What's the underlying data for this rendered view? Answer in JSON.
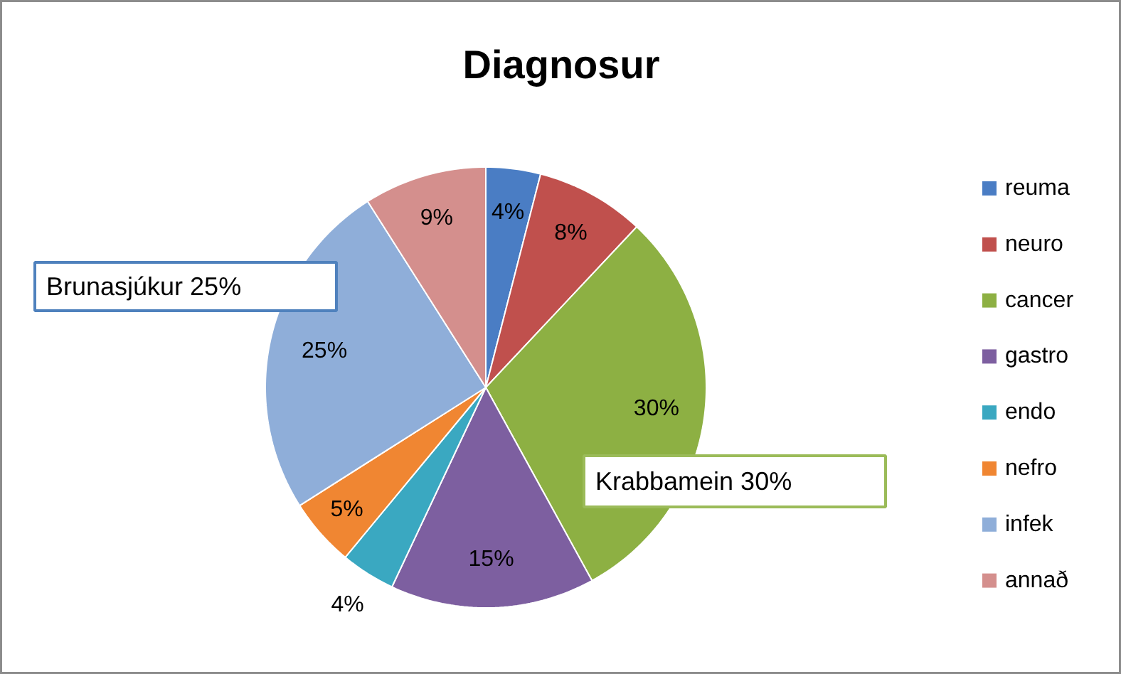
{
  "chart_data": {
    "type": "pie",
    "title": "Diagnosur",
    "categories": [
      "reuma",
      "neuro",
      "cancer",
      "gastro",
      "endo",
      "nefro",
      "infek",
      "annað"
    ],
    "values": [
      4,
      8,
      30,
      15,
      4,
      5,
      25,
      9
    ],
    "colors": [
      "#4a7dc4",
      "#c0504d",
      "#8db043",
      "#7d5fa0",
      "#3aa8c1",
      "#f08632",
      "#8faed9",
      "#d48f8d"
    ],
    "value_labels": [
      "4%",
      "8%",
      "30%",
      "15%",
      "4%",
      "5%",
      "25%",
      "9%"
    ],
    "legend": "right",
    "annotations": [
      "Brunasjúkur 25%",
      "Krabbamein 30%"
    ]
  }
}
